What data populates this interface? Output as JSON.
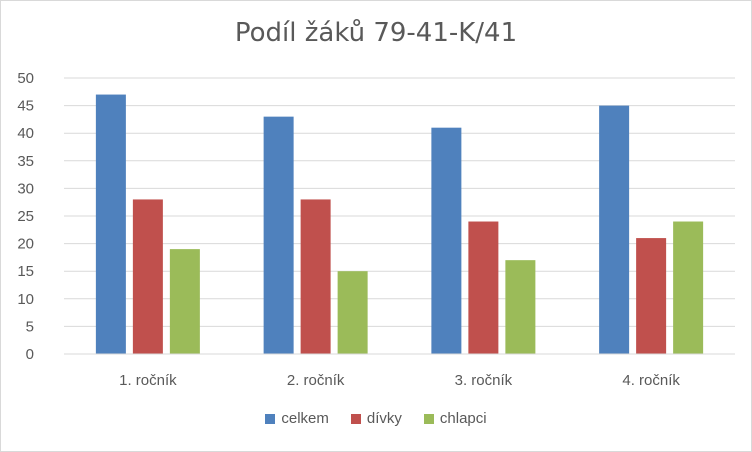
{
  "chart_data": {
    "type": "bar",
    "title": "Podíl žáků 79-41-K/41",
    "categories": [
      "1. ročník",
      "2. ročník",
      "3. ročník",
      "4. ročník"
    ],
    "series": [
      {
        "name": "celkem",
        "color": "#4f81bd",
        "values": [
          47,
          43,
          41,
          45
        ]
      },
      {
        "name": "dívky",
        "color": "#c0504d",
        "values": [
          28,
          28,
          24,
          21
        ]
      },
      {
        "name": "chlapci",
        "color": "#9bbb59",
        "values": [
          19,
          15,
          17,
          24
        ]
      }
    ],
    "ylim": [
      0,
      50
    ],
    "yticks": [
      0,
      5,
      10,
      15,
      20,
      25,
      30,
      35,
      40,
      45,
      50
    ],
    "grid": true,
    "legend": "bottom"
  }
}
